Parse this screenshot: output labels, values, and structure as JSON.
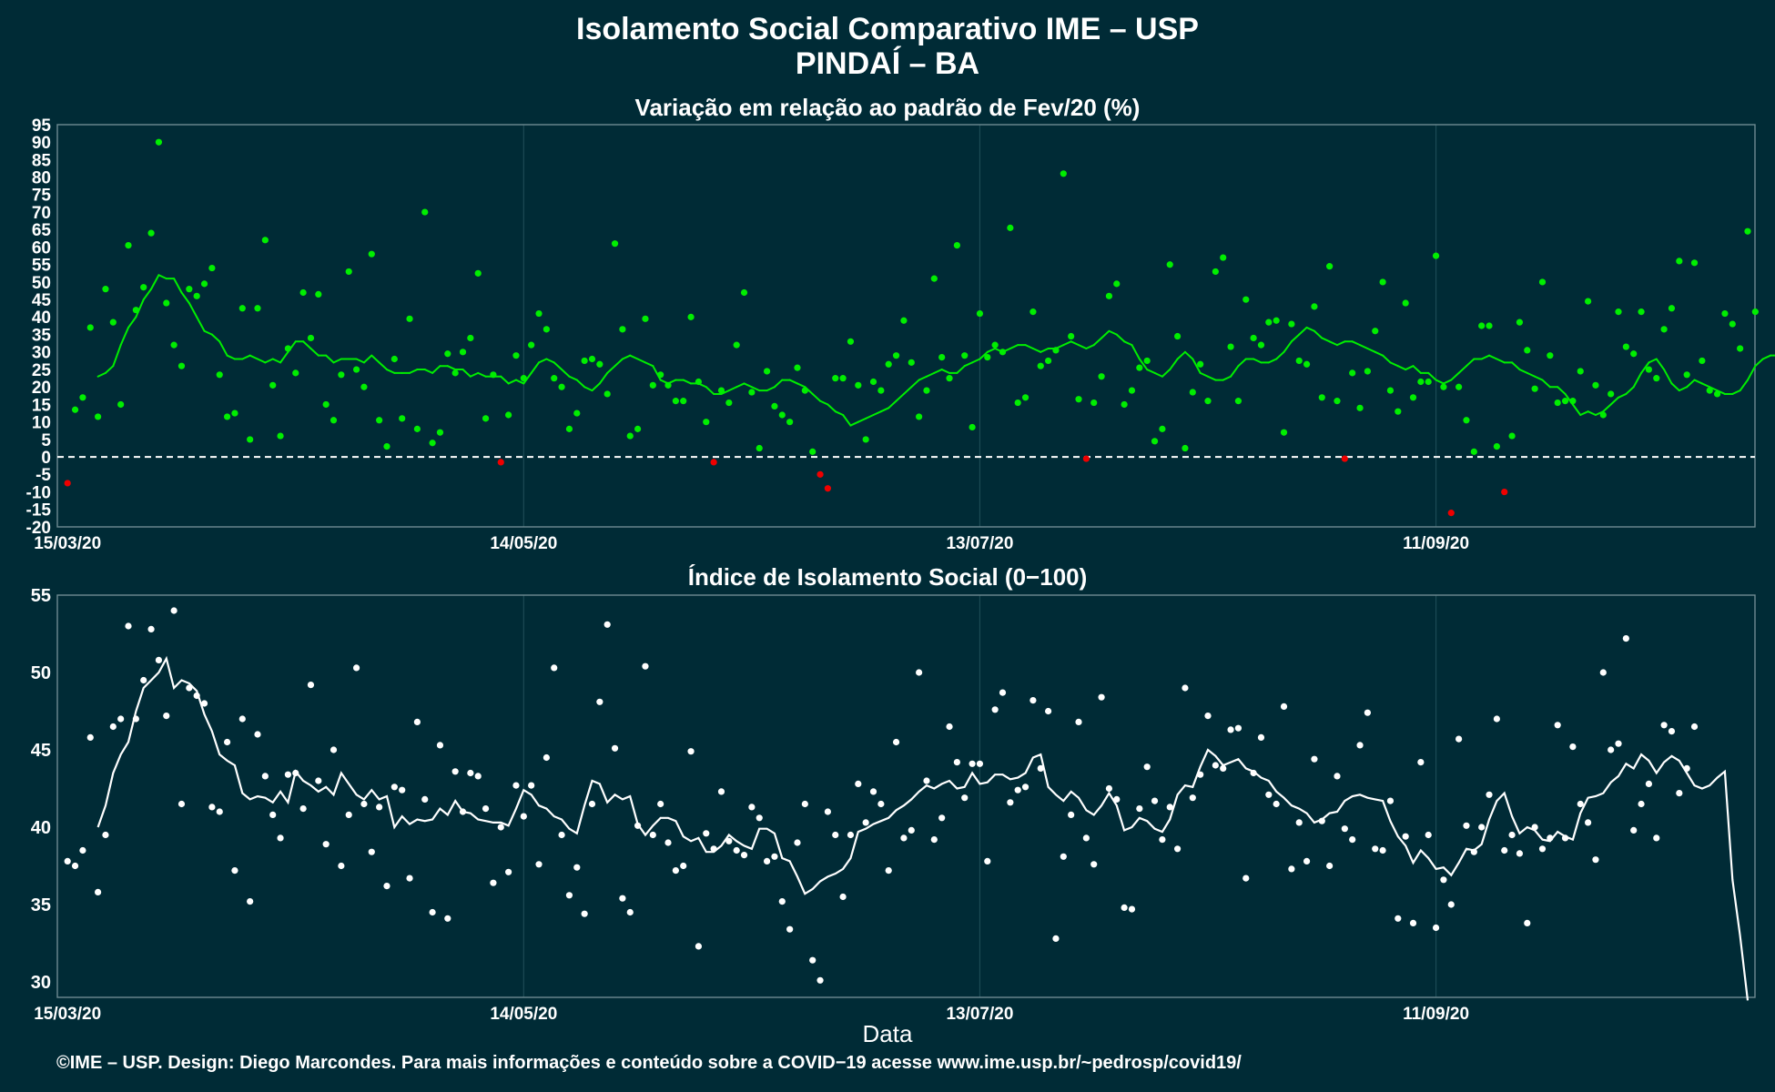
{
  "header": {
    "title": "Isolamento Social Comparativo IME – USP",
    "subtitle": "PINDAÍ – BA"
  },
  "footer": "©IME – USP. Design: Diego Marcondes. Para mais informações e conteúdo sobre a COVID−19 acesse www.ime.usp.br/~pedrosp/covid19/",
  "colors": {
    "background": "#002b36",
    "positive": "#00ee00",
    "negative": "#ee0000",
    "index": "#ffffff",
    "grid": "#1c4a55",
    "frame": "#6e8a91"
  },
  "chart_data": [
    {
      "type": "line",
      "title": "Variação em relação ao padrão de Fev/20 (%)",
      "xlabel": "",
      "ylabel": "",
      "x_start": "2020-03-15",
      "x_ticks": [
        "15/03/20",
        "14/05/20",
        "13/07/20",
        "11/09/20"
      ],
      "ylim": [
        -20,
        95
      ],
      "y_ticks": [
        -20,
        -15,
        -10,
        -5,
        0,
        5,
        10,
        15,
        20,
        25,
        30,
        35,
        40,
        45,
        50,
        55,
        60,
        65,
        70,
        75,
        80,
        85,
        90,
        95
      ],
      "reference_line": 0,
      "series": [
        {
          "style": "points, green above 0 and red below 0",
          "values": [
            -7.5,
            13.5,
            17,
            37,
            11.5,
            48,
            38.5,
            15,
            60.5,
            42,
            48.5,
            64,
            90,
            44,
            32,
            26,
            48,
            46,
            49.5,
            54,
            23.5,
            11.5,
            12.5,
            42.5,
            5,
            42.5,
            62,
            20.5,
            6,
            31,
            24,
            47,
            34,
            46.5,
            15,
            10.5,
            23.5,
            53,
            25,
            20,
            58,
            10.5,
            3,
            28,
            11,
            39.5,
            8,
            70,
            4,
            7,
            29.5,
            24,
            30,
            34,
            52.5,
            11,
            23.5,
            -1.5,
            12,
            29,
            22.5,
            32,
            41,
            36.5,
            22.5,
            20,
            8,
            12.5,
            27.5,
            28,
            26.5,
            18,
            61,
            36.5,
            6,
            8,
            39.5,
            20.5,
            23.5,
            20.5,
            16,
            16,
            40,
            21.5,
            10,
            -1.5,
            19,
            15.5,
            32,
            47,
            18.5,
            2.5,
            24.5,
            14.5,
            12,
            10,
            25.5,
            19,
            1.5,
            -5,
            -9,
            22.5,
            22.5,
            33,
            20.5,
            5,
            21.5,
            19,
            26.5,
            29,
            39,
            27,
            11.5,
            19,
            51,
            28.5,
            22.5,
            60.5,
            29,
            8.5,
            41,
            28.5,
            32,
            30,
            65.5,
            15.5,
            17,
            41.5,
            26,
            27.5,
            30.5,
            81,
            34.5,
            16.5,
            -0.5,
            15.5,
            23,
            46,
            49.5,
            15,
            19,
            25.5,
            27.5,
            4.5,
            8,
            55,
            34.5,
            2.5,
            18.5,
            26.5,
            16,
            53,
            57,
            31.5,
            16,
            45,
            34,
            32,
            38.5,
            39,
            7,
            38,
            27.5,
            26.5,
            43,
            17,
            54.5,
            16,
            -0.5,
            24,
            14,
            24.5,
            36,
            50,
            19,
            13,
            44,
            17,
            21.5,
            21.5,
            57.5,
            20,
            -16,
            20,
            10.5,
            1.5,
            37.5,
            37.5,
            3,
            -10,
            6,
            38.5,
            30.5,
            19.5,
            50,
            29,
            15.5,
            16,
            16,
            24.5,
            44.5,
            20.5,
            12,
            18,
            41.5,
            31.5,
            29.5,
            41.5,
            25,
            22.5,
            36.5,
            42.5,
            56,
            23.5,
            55.5,
            27.5,
            19,
            18,
            41,
            38,
            31,
            64.5,
            41.5
          ]
        },
        {
          "style": "line, green above 0 and red below 0",
          "values": [
            null,
            null,
            null,
            null,
            23,
            24,
            26,
            32,
            37,
            40,
            45,
            48,
            52,
            51,
            51,
            47,
            44,
            40,
            36,
            35,
            33,
            29,
            28,
            28,
            29,
            28,
            27,
            28,
            27,
            30,
            33,
            33,
            31,
            29,
            29,
            27,
            28,
            28,
            28,
            27,
            29,
            27,
            25,
            24,
            24,
            24,
            25,
            25,
            24,
            26,
            26,
            25,
            25,
            23,
            24,
            23,
            23,
            23,
            21,
            22,
            21,
            24,
            27,
            28,
            27,
            25,
            23,
            22,
            20,
            19,
            21,
            24,
            26,
            28,
            29,
            28,
            27,
            26,
            22,
            21,
            22,
            22,
            21,
            21,
            20,
            18,
            18,
            19,
            20,
            21,
            20,
            19,
            19,
            20,
            22,
            22,
            21,
            20,
            18,
            16,
            15,
            13,
            12,
            9,
            10,
            11,
            12,
            13,
            14,
            16,
            18,
            20,
            22,
            23,
            24,
            25,
            24,
            24,
            26,
            27,
            28,
            30,
            31,
            30,
            31,
            32,
            32,
            31,
            30,
            31,
            31,
            32,
            33,
            32,
            31,
            32,
            34,
            36,
            35,
            33,
            32,
            28,
            25,
            24,
            23,
            25,
            28,
            30,
            28,
            24,
            23,
            22,
            22,
            23,
            26,
            28,
            28,
            27,
            27,
            28,
            30,
            33,
            35,
            37,
            36,
            34,
            33,
            32,
            33,
            33,
            32,
            31,
            30,
            29,
            27,
            26,
            25,
            26,
            24,
            24,
            22,
            21,
            22,
            24,
            26,
            28,
            28,
            29,
            28,
            27,
            27,
            25,
            24,
            23,
            22,
            20,
            20,
            18,
            15,
            12,
            13,
            12,
            13,
            15,
            17,
            18,
            20,
            24,
            27,
            28,
            25,
            21,
            19,
            20,
            22,
            21,
            20,
            19,
            18,
            18,
            19,
            22,
            26,
            28,
            29,
            29,
            30,
            30,
            31,
            33,
            35,
            35,
            36,
            35,
            33,
            33,
            31,
            31,
            32,
            34,
            35
          ]
        }
      ]
    },
    {
      "type": "line",
      "title": "Índice de Isolamento Social (0−100)",
      "xlabel": "Data",
      "ylabel": "",
      "x_start": "2020-03-15",
      "x_ticks": [
        "15/03/20",
        "14/05/20",
        "13/07/20",
        "11/09/20"
      ],
      "ylim": [
        29,
        55
      ],
      "y_ticks": [
        30,
        35,
        40,
        45,
        50,
        55
      ],
      "series": [
        {
          "style": "points",
          "values": [
            37.8,
            37.5,
            38.5,
            45.8,
            35.8,
            39.5,
            46.5,
            47,
            53,
            47,
            49.5,
            52.8,
            50.8,
            47.2,
            54,
            41.5,
            49,
            48.5,
            48,
            41.3,
            41,
            45.5,
            37.2,
            47,
            35.2,
            46,
            43.3,
            40.8,
            39.3,
            43.4,
            43.5,
            41.2,
            49.2,
            43,
            38.9,
            45,
            37.5,
            40.8,
            50.3,
            41.5,
            38.4,
            41.3,
            36.2,
            42.6,
            42.4,
            36.7,
            46.8,
            41.8,
            34.5,
            45.3,
            34.1,
            43.6,
            41,
            43.5,
            43.3,
            41.2,
            36.4,
            40,
            37.1,
            42.7,
            40.7,
            42.7,
            37.6,
            44.5,
            50.3,
            39.5,
            35.6,
            37.4,
            34.4,
            41.5,
            48.1,
            53.1,
            45.1,
            35.4,
            34.5,
            40.1,
            50.4,
            39.5,
            41.5,
            39,
            37.2,
            37.5,
            44.9,
            32.3,
            39.6,
            38.6,
            42.3,
            39.1,
            38.5,
            38.2,
            41.3,
            40.6,
            37.8,
            38.1,
            35.2,
            33.4,
            39,
            41.5,
            31.4,
            30.1,
            41,
            39.5,
            35.5,
            39.5,
            42.8,
            40.3,
            42.3,
            41.5,
            37.2,
            45.5,
            39.3,
            39.8,
            50,
            43,
            39.2,
            40.6,
            46.5,
            44.2,
            41.9,
            44.1,
            44.1,
            37.8,
            47.6,
            48.7,
            41.6,
            42.4,
            42.6,
            48.2,
            43.8,
            47.5,
            32.8,
            38.1,
            40.8,
            46.8,
            39.3,
            37.6,
            48.4,
            42.5,
            41.8,
            34.8,
            34.7,
            41.2,
            43.9,
            41.7,
            39.2,
            41.3,
            38.6,
            49,
            41.9,
            43.4,
            47.2,
            44,
            43.8,
            46.3,
            46.4,
            36.7,
            43.5,
            45.8,
            42.1,
            41.5,
            47.8,
            37.3,
            40.3,
            37.8,
            44.4,
            40.4,
            37.5,
            43.3,
            39.9,
            39.2,
            45.3,
            47.4,
            38.6,
            38.5,
            41.7,
            34.1,
            39.4,
            33.8,
            44.2,
            39.5,
            33.5,
            36.6,
            35,
            45.7,
            40.1,
            38.4,
            40,
            42.1,
            47,
            38.5,
            39.5,
            38.3,
            33.8,
            40,
            38.6,
            39.3,
            46.6,
            39.3,
            45.2,
            41.5,
            40.3,
            37.9,
            50,
            45,
            45.4,
            52.2,
            39.8,
            41.5,
            42.8,
            39.3,
            46.6,
            46.2,
            42.2,
            43.8,
            46.5
          ]
        },
        {
          "style": "line",
          "values": [
            null,
            null,
            null,
            null,
            40,
            41.4,
            43.5,
            44.7,
            45.5,
            47.5,
            49,
            49.5,
            50,
            50.9,
            49,
            49.5,
            49.3,
            48.8,
            47.3,
            46.2,
            44.7,
            44.3,
            44,
            42.2,
            41.8,
            42,
            41.9,
            41.6,
            42.3,
            41.6,
            43.6,
            43,
            42.7,
            42.3,
            42.6,
            42.1,
            43.5,
            42.8,
            42.1,
            41.8,
            42.4,
            41.8,
            42,
            40,
            40.7,
            40.2,
            40.5,
            40.4,
            40.5,
            41.2,
            40.8,
            41.7,
            41,
            40.9,
            40.5,
            40.4,
            40.3,
            40.3,
            40.1,
            41.2,
            42.4,
            42.1,
            41.4,
            41.2,
            40.7,
            40.5,
            39.9,
            39.6,
            41.4,
            43,
            42.8,
            41.6,
            42.1,
            41.8,
            42,
            40.2,
            39.5,
            40.1,
            40.6,
            40.6,
            40.4,
            39.4,
            39.1,
            39.3,
            38.4,
            38.4,
            38.8,
            39.5,
            39.1,
            38.8,
            38.6,
            39.9,
            39.9,
            39.6,
            38,
            37.8,
            36.8,
            35.7,
            36,
            36.5,
            36.8,
            37,
            37.3,
            38,
            39.7,
            39.9,
            40.2,
            40.4,
            40.6,
            41.1,
            41.4,
            41.8,
            42.3,
            42.7,
            42.5,
            42.8,
            43,
            42.5,
            42.6,
            43.5,
            42.8,
            42.9,
            43.4,
            43.4,
            43.1,
            43.2,
            43.5,
            44.5,
            44.7,
            42.6,
            42.1,
            41.7,
            42.3,
            41.9,
            41.1,
            40.8,
            41.4,
            42.2,
            41.4,
            39.8,
            40,
            40.6,
            40.4,
            39.9,
            39.7,
            40.5,
            42.1,
            42.7,
            42.6,
            43.9,
            45,
            44.6,
            44,
            44.2,
            44.4,
            43.8,
            43.6,
            43.2,
            43,
            42.3,
            41.9,
            41.4,
            41.2,
            40.9,
            40.3,
            40.5,
            40.9,
            41,
            41.7,
            42,
            42.1,
            41.9,
            41.8,
            41.7,
            40.4,
            39.4,
            38.8,
            37.7,
            38.5,
            38,
            37.3,
            37.4,
            36.9,
            37.7,
            38.6,
            38.5,
            38.9,
            40.5,
            41.7,
            42.2,
            40.7,
            39.6,
            40,
            39.8,
            39.2,
            39.1,
            39.7,
            39.4,
            39.2,
            40.9,
            41.9,
            42,
            42.2,
            42.9,
            43.3,
            44.1,
            43.8,
            44.7,
            44.3,
            43.5,
            44.2,
            44.6,
            44.3,
            43.5,
            42.7,
            42.5,
            42.7,
            43.2,
            43.6,
            36.6,
            33,
            28.8
          ]
        }
      ]
    }
  ]
}
